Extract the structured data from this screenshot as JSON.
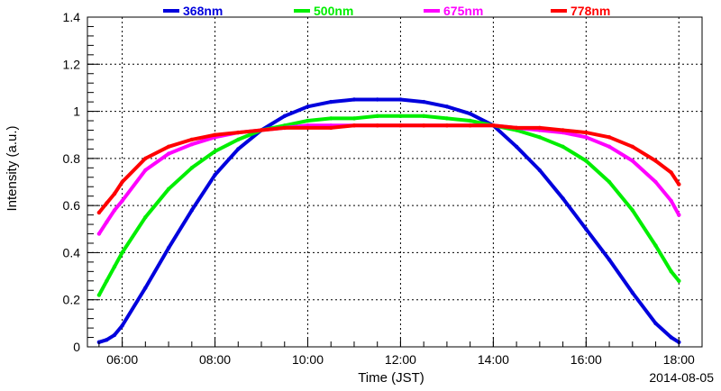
{
  "chart_data": {
    "type": "scatter",
    "title": "",
    "xlabel": "Time (JST)",
    "ylabel": "Intensity (a.u.)",
    "date_label": "2014-08-05",
    "xlim": [
      "05:15",
      "18:30"
    ],
    "ylim": [
      0,
      1.4
    ],
    "grid": true,
    "legend_position": "top",
    "x_ticks": [
      "06:00",
      "08:00",
      "10:00",
      "12:00",
      "14:00",
      "16:00",
      "18:00"
    ],
    "y_ticks": [
      "0",
      "0.2",
      "0.4",
      "0.6",
      "0.8",
      "1",
      "1.2",
      "1.4"
    ],
    "x": [
      "05:30",
      "05:40",
      "05:50",
      "06:00",
      "06:30",
      "07:00",
      "07:30",
      "08:00",
      "08:30",
      "09:00",
      "09:30",
      "10:00",
      "10:30",
      "11:00",
      "11:30",
      "12:00",
      "12:30",
      "13:00",
      "13:30",
      "14:00",
      "14:30",
      "15:00",
      "15:30",
      "16:00",
      "16:30",
      "17:00",
      "17:30",
      "17:50",
      "18:00"
    ],
    "series": [
      {
        "name": "368nm",
        "color": "#0000dd",
        "values": [
          0.02,
          0.03,
          0.05,
          0.09,
          0.25,
          0.42,
          0.58,
          0.73,
          0.84,
          0.92,
          0.98,
          1.02,
          1.04,
          1.05,
          1.05,
          1.05,
          1.04,
          1.02,
          0.99,
          0.94,
          0.85,
          0.75,
          0.63,
          0.5,
          0.37,
          0.23,
          0.1,
          0.04,
          0.02
        ]
      },
      {
        "name": "500nm",
        "color": "#00ee00",
        "values": [
          0.22,
          0.28,
          0.34,
          0.4,
          0.55,
          0.67,
          0.76,
          0.83,
          0.88,
          0.92,
          0.94,
          0.96,
          0.97,
          0.97,
          0.98,
          0.98,
          0.98,
          0.97,
          0.96,
          0.94,
          0.92,
          0.89,
          0.85,
          0.79,
          0.7,
          0.58,
          0.43,
          0.32,
          0.28
        ]
      },
      {
        "name": "675nm",
        "color": "#ff00ff",
        "values": [
          0.48,
          0.53,
          0.58,
          0.62,
          0.75,
          0.82,
          0.86,
          0.89,
          0.91,
          0.92,
          0.93,
          0.94,
          0.94,
          0.94,
          0.94,
          0.94,
          0.94,
          0.94,
          0.94,
          0.94,
          0.93,
          0.92,
          0.91,
          0.89,
          0.85,
          0.79,
          0.7,
          0.62,
          0.56
        ]
      },
      {
        "name": "778nm",
        "color": "#ff0000",
        "values": [
          0.57,
          0.61,
          0.65,
          0.7,
          0.8,
          0.85,
          0.88,
          0.9,
          0.91,
          0.92,
          0.93,
          0.93,
          0.93,
          0.94,
          0.94,
          0.94,
          0.94,
          0.94,
          0.94,
          0.94,
          0.93,
          0.93,
          0.92,
          0.91,
          0.89,
          0.85,
          0.79,
          0.74,
          0.69
        ]
      }
    ]
  }
}
